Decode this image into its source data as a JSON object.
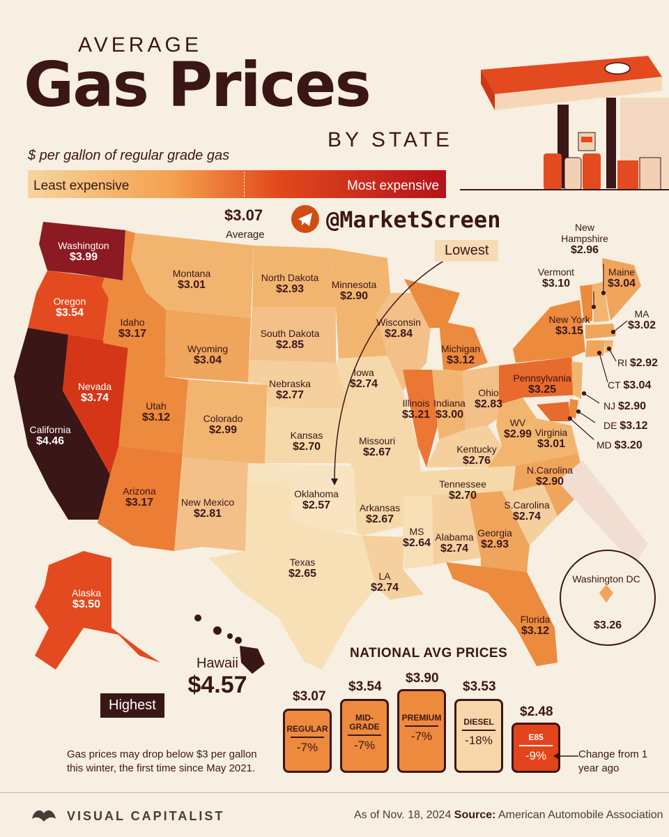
{
  "header": {
    "average": "AVERAGE",
    "main_title": "Gas Prices",
    "by_state": "BY STATE",
    "subtitle": "$ per gallon of regular grade gas",
    "legend_least": "Least expensive",
    "legend_most": "Most expensive",
    "average_value": "$3.07",
    "average_label": "Average",
    "handle": "@MarketScreen"
  },
  "states": {
    "washington": {
      "name": "Washington",
      "value": "$3.99"
    },
    "oregon": {
      "name": "Oregon",
      "value": "$3.54"
    },
    "california": {
      "name": "California",
      "value": "$4.46"
    },
    "nevada": {
      "name": "Nevada",
      "value": "$3.74"
    },
    "idaho": {
      "name": "Idaho",
      "value": "$3.17"
    },
    "montana": {
      "name": "Montana",
      "value": "$3.01"
    },
    "wyoming": {
      "name": "Wyoming",
      "value": "$3.04"
    },
    "utah": {
      "name": "Utah",
      "value": "$3.12"
    },
    "arizona": {
      "name": "Arizona",
      "value": "$3.17"
    },
    "colorado": {
      "name": "Colorado",
      "value": "$2.99"
    },
    "new_mexico": {
      "name": "New Mexico",
      "value": "$2.81"
    },
    "north_dakota": {
      "name": "North Dakota",
      "value": "$2.93"
    },
    "south_dakota": {
      "name": "South Dakota",
      "value": "$2.85"
    },
    "nebraska": {
      "name": "Nebraska",
      "value": "$2.77"
    },
    "kansas": {
      "name": "Kansas",
      "value": "$2.70"
    },
    "oklahoma": {
      "name": "Oklahoma",
      "value": "$2.57"
    },
    "texas": {
      "name": "Texas",
      "value": "$2.65"
    },
    "minnesota": {
      "name": "Minnesota",
      "value": "$2.90"
    },
    "iowa": {
      "name": "Iowa",
      "value": "$2.74"
    },
    "missouri": {
      "name": "Missouri",
      "value": "$2.67"
    },
    "arkansas": {
      "name": "Arkansas",
      "value": "$2.67"
    },
    "louisiana": {
      "name": "LA",
      "value": "$2.74"
    },
    "wisconsin": {
      "name": "Wisconsin",
      "value": "$2.84"
    },
    "illinois": {
      "name": "Illinois",
      "value": "$3.21"
    },
    "michigan": {
      "name": "Michigan",
      "value": "$3.12"
    },
    "indiana": {
      "name": "Indiana",
      "value": "$3.00"
    },
    "ohio": {
      "name": "Ohio",
      "value": "$2.83"
    },
    "kentucky": {
      "name": "Kentucky",
      "value": "$2.76"
    },
    "tennessee": {
      "name": "Tennessee",
      "value": "$2.70"
    },
    "mississippi": {
      "name": "MS",
      "value": "$2.64"
    },
    "alabama": {
      "name": "Alabama",
      "value": "$2.74"
    },
    "georgia": {
      "name": "Georgia",
      "value": "$2.93"
    },
    "florida": {
      "name": "Florida",
      "value": "$3.12"
    },
    "south_carolina": {
      "name": "S.Carolina",
      "value": "$2.74"
    },
    "north_carolina": {
      "name": "N.Carolina",
      "value": "$2.90"
    },
    "virginia": {
      "name": "Virginia",
      "value": "$3.01"
    },
    "west_virginia": {
      "name": "WV",
      "value": "$2.99"
    },
    "pennsylvania": {
      "name": "Pennsylvania",
      "value": "$3.25"
    },
    "new_york": {
      "name": "New York",
      "value": "$3.15"
    },
    "vermont": {
      "name": "Vermont",
      "value": "$3.10"
    },
    "new_hampshire": {
      "name": "New Hampshire",
      "value": "$2.96"
    },
    "maine": {
      "name": "Maine",
      "value": "$3.04"
    },
    "massachusetts": {
      "name": "MA",
      "value": "$3.02"
    },
    "rhode_island": {
      "name": "RI",
      "value": "$2.92"
    },
    "connecticut": {
      "name": "CT",
      "value": "$3.04"
    },
    "new_jersey": {
      "name": "NJ",
      "value": "$2.90"
    },
    "delaware": {
      "name": "DE",
      "value": "$3.12"
    },
    "maryland": {
      "name": "MD",
      "value": "$3.20"
    },
    "washington_dc": {
      "name": "Washington DC",
      "value": "$3.26"
    },
    "alaska": {
      "name": "Alaska",
      "value": "$3.50"
    },
    "hawaii": {
      "name": "Hawaii",
      "value": "$4.57"
    }
  },
  "callouts": {
    "lowest": "Lowest",
    "highest": "Highest"
  },
  "national": {
    "title": "NATIONAL AVG PRICES",
    "fuels": [
      {
        "name": "REGULAR",
        "price": "$3.07",
        "change": "-7%",
        "color": "#ee8a3e"
      },
      {
        "name": "MID-GRADE",
        "price": "$3.54",
        "change": "-7%",
        "color": "#ee8a3e"
      },
      {
        "name": "PREMIUM",
        "price": "$3.90",
        "change": "-7%",
        "color": "#ee8a3e"
      },
      {
        "name": "DIESEL",
        "price": "$3.53",
        "change": "-18%",
        "color": "#f7d7aa"
      },
      {
        "name": "E85",
        "price": "$2.48",
        "change": "-9%",
        "color": "#e2441c"
      }
    ],
    "change_note": "Change from 1 year ago"
  },
  "note": "Gas prices may drop below $3 per gallon this winter, the first time since May 2021.",
  "footer": {
    "brand": "VISUAL CAPITALIST",
    "as_of": "As of Nov. 18, 2024",
    "source_label": "Source:",
    "source": "American Automobile Association"
  },
  "colors": {
    "background": "#f7efe1",
    "dark": "#3a1616",
    "lightest": "#f6d9aa",
    "light": "#f2b56f",
    "mid": "#ec8a3e",
    "high": "#e2481c",
    "highest": "#3a1616"
  }
}
